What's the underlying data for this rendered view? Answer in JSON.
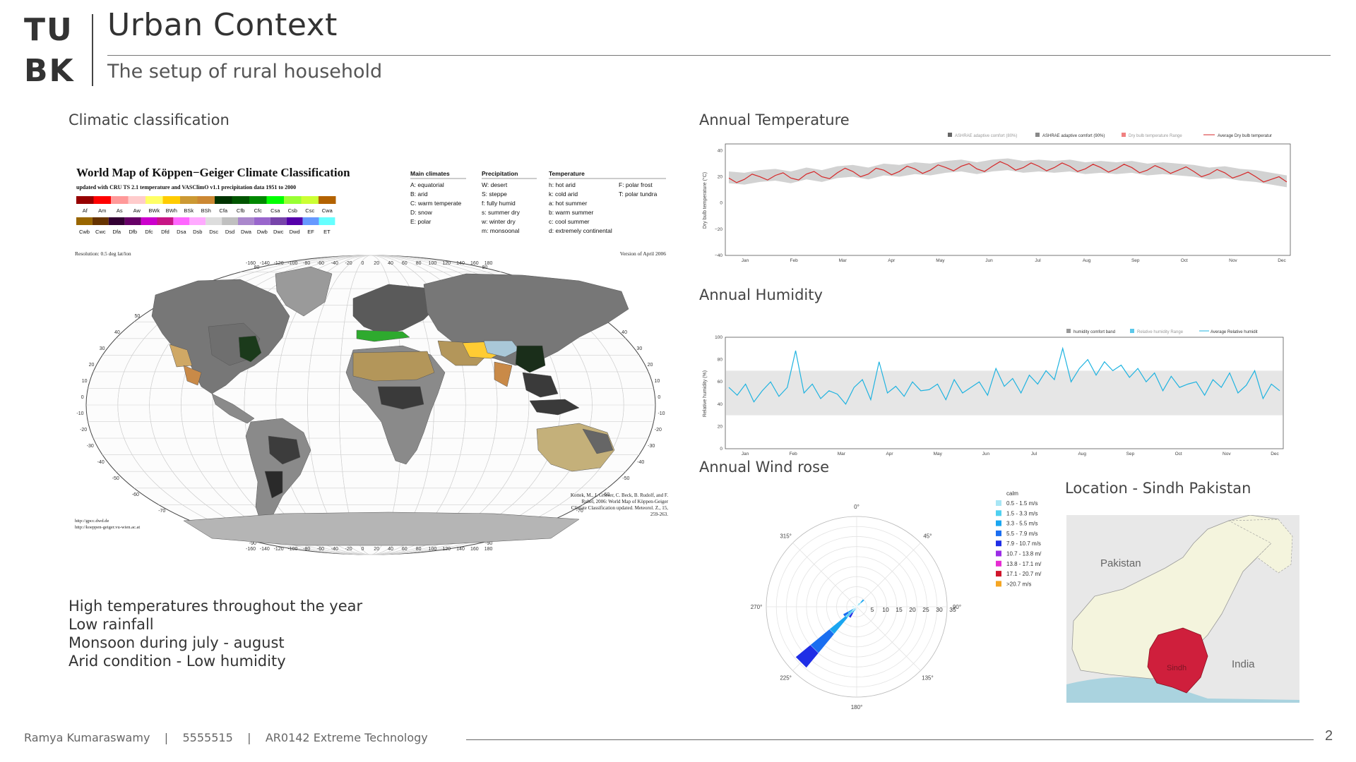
{
  "header": {
    "logo_line1": "TU",
    "logo_line2": "BK",
    "title": "Urban Context",
    "subtitle": "The setup of rural household"
  },
  "climate_map": {
    "section_label": "Climatic classification",
    "map_title": "World Map of Köppen−Geiger Climate Classification",
    "map_subtitle": "updated with CRU TS 2.1 temperature and VASClimO v1.1 precipitation data 1951 to 2000",
    "legend_codes_row1": [
      "Af",
      "Am",
      "As",
      "Aw",
      "BWk",
      "BWh",
      "BSk",
      "BSh",
      "Cfa",
      "Cfb",
      "Cfc",
      "Csa",
      "Csb",
      "Csc",
      "Cwa"
    ],
    "legend_colors_row1": [
      "#960000",
      "#ff0000",
      "#ff9999",
      "#ffcccc",
      "#ffff66",
      "#ffcc00",
      "#cc9933",
      "#cc8833",
      "#003300",
      "#005500",
      "#008800",
      "#00ff00",
      "#99ff33",
      "#ccff33",
      "#b36200"
    ],
    "legend_codes_row2": [
      "Cwb",
      "Cwc",
      "Dfa",
      "Dfb",
      "Dfc",
      "Dfd",
      "Dsa",
      "Dsb",
      "Dsc",
      "Dsd",
      "Dwa",
      "Dwb",
      "Dwc",
      "Dwd",
      "EF",
      "ET"
    ],
    "legend_colors_row2": [
      "#996600",
      "#663300",
      "#330033",
      "#660066",
      "#cc00cc",
      "#c71585",
      "#ff66ff",
      "#ffaaff",
      "#dddddd",
      "#c0c0c0",
      "#aa88cc",
      "#9966cc",
      "#7744aa",
      "#5500aa",
      "#6699ff",
      "#66ffff"
    ],
    "main_climates_heading": "Main climates",
    "main_climates": [
      "A: equatorial",
      "B: arid",
      "C: warm temperate",
      "D: snow",
      "E: polar"
    ],
    "precipitation_heading": "Precipitation",
    "precipitation": [
      "W: desert",
      "S: steppe",
      "f: fully humid",
      "s: summer dry",
      "w: winter dry",
      "m: monsoonal"
    ],
    "temperature_heading": "Temperature",
    "temperature_col1": [
      "h: hot arid",
      "k: cold arid",
      "a: hot summer",
      "b: warm summer",
      "c: cool summer",
      "d: extremely continental"
    ],
    "temperature_col2": [
      "F: polar frost",
      "T: polar tundra"
    ],
    "resolution": "Resolution: 0.5 deg lat/lon",
    "version": "Version of April 2006",
    "urls": "http://gpcc.dwd.de\nhttp://koeppen-geiger.vu-wien.ac.at",
    "citation": "Kottek, M., J. Grieser, C. Beck, B. Rudolf, and F. Rubel, 2006: World Map of Köppen-Geiger Climate Classification updated. Meteorol. Z., 15, 259-263.",
    "lon_ticks": [
      "-160",
      "-140",
      "-120",
      "-100",
      "-80",
      "-60",
      "-40",
      "-20",
      "0",
      "20",
      "40",
      "60",
      "80",
      "100",
      "120",
      "140",
      "160",
      "180"
    ],
    "lat_ticks": [
      "80",
      "70",
      "60",
      "50",
      "40",
      "30",
      "20",
      "10",
      "0",
      "-10",
      "-20",
      "-30",
      "-40",
      "-50",
      "-60",
      "-70",
      "-80",
      "-90"
    ]
  },
  "bullets": [
    "High temperatures throughout the year",
    "Low rainfall",
    "Monsoon during july - august",
    "Arid condition - Low humidity"
  ],
  "temperature_chart": {
    "section_label": "Annual Temperature",
    "legend": [
      "ASHRAE adaptive comfort (80%)",
      "ASHRAE adaptive comfort (90%)",
      "Dry bulb temperature Range",
      "Average Dry bulb temperatur"
    ],
    "ylabel": "Dry bulb temperature (°C)",
    "yticks": [
      "40",
      "20",
      "0",
      "−20",
      "−40"
    ],
    "months": [
      "Jan",
      "Feb",
      "Mar",
      "Apr",
      "May",
      "Jun",
      "Jul",
      "Aug",
      "Sep",
      "Oct",
      "Nov",
      "Dec"
    ],
    "colors": {
      "line": "#d62728",
      "band": "#cfcfcf"
    },
    "chart_data": {
      "type": "line",
      "xlabel": "",
      "ylabel": "Dry bulb temperature (°C)",
      "ylim": [
        -40,
        45
      ],
      "series": [
        {
          "name": "Average Dry bulb temperatur",
          "values": [
            19,
            18,
            20,
            21,
            19,
            22,
            20,
            23,
            24,
            22,
            25,
            24,
            26,
            25,
            27,
            28,
            26,
            28,
            29,
            27,
            28,
            27,
            28,
            26,
            27,
            26,
            27,
            25,
            26,
            25,
            24,
            22,
            23,
            21,
            20,
            18,
            16
          ]
        }
      ]
    }
  },
  "humidity_chart": {
    "section_label": "Annual Humidity",
    "legend": [
      "humidity comfort band",
      "Relative humidity Range",
      "Average Relative humidit"
    ],
    "ylabel": "Relative humidity (%)",
    "yticks": [
      "100",
      "80",
      "60",
      "40",
      "20",
      "0"
    ],
    "months": [
      "Jan",
      "Feb",
      "Mar",
      "Apr",
      "May",
      "Jun",
      "Jul",
      "Aug",
      "Sep",
      "Oct",
      "Nov",
      "Dec"
    ],
    "colors": {
      "line": "#1fb3e0",
      "band": "#e3e3e3"
    },
    "chart_data": {
      "type": "line",
      "xlabel": "",
      "ylabel": "Relative humidity (%)",
      "ylim": [
        0,
        100
      ],
      "series": [
        {
          "name": "Average Relative humidit",
          "values": [
            55,
            48,
            58,
            42,
            52,
            60,
            47,
            55,
            88,
            50,
            58,
            45,
            52,
            49,
            40,
            55,
            62,
            44,
            78,
            50,
            56,
            47,
            60,
            52,
            53,
            58,
            44,
            62,
            50,
            55,
            60,
            48,
            72,
            56,
            63,
            50,
            66,
            58,
            70,
            62,
            90,
            60,
            72,
            80,
            66,
            78,
            70,
            75,
            64,
            72,
            60,
            68,
            52,
            65,
            55,
            58,
            60,
            48,
            62,
            55,
            68,
            50,
            57,
            70,
            45,
            58,
            52
          ]
        }
      ]
    }
  },
  "wind_rose": {
    "section_label": "Annual Wind rose",
    "angle_labels": [
      "0°",
      "45°",
      "90°",
      "135°",
      "180°",
      "225°",
      "270°",
      "315°"
    ],
    "radial_ticks": [
      "5",
      "10",
      "15",
      "20",
      "25",
      "30",
      "35"
    ],
    "legend_title": "calm",
    "legend_items": [
      {
        "label": "0.5 - 1.5 m/s",
        "color": "#a8e6f5"
      },
      {
        "label": "1.5 - 3.3 m/s",
        "color": "#4fd0f0"
      },
      {
        "label": "3.3 - 5.5 m/s",
        "color": "#1aa6f0"
      },
      {
        "label": "5.5 - 7.9 m/s",
        "color": "#1a6ef0"
      },
      {
        "label": "7.9 - 10.7 m/s",
        "color": "#1f2ee6"
      },
      {
        "label": "10.7 - 13.8 m/",
        "color": "#9b2de6"
      },
      {
        "label": "13.8 - 17.1 m/",
        "color": "#e62dd2"
      },
      {
        "label": "17.1 - 20.7 m/",
        "color": "#d0152b"
      },
      {
        "label": ">20.7 m/s",
        "color": "#f5a623"
      }
    ]
  },
  "location": {
    "section_label": "Location - Sindh Pakistan",
    "label_pakistan": "Pakistan",
    "label_india": "India",
    "label_sindh": "Sindh",
    "colors": {
      "highlight": "#cf1f3c",
      "land": "#f3f3dc",
      "water": "#aad3df",
      "bg": "#e6e6e6"
    }
  },
  "footer": {
    "author": "Ramya Kumaraswamy",
    "id": "5555515",
    "course": "AR0142 Extreme Technology",
    "page": "2"
  }
}
